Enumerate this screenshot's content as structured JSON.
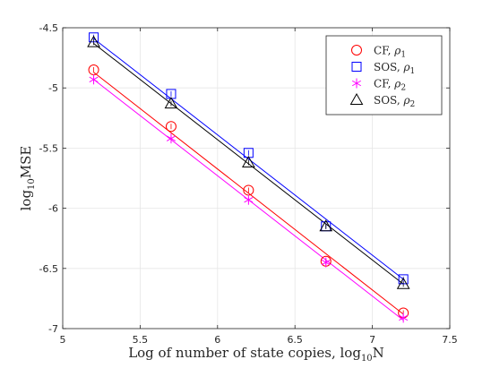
{
  "chart_data": {
    "type": "line",
    "xlabel": "Log of number of state copies, log",
    "xlabel_sub": "10",
    "xlabel_tail": "N",
    "ylabel": "log",
    "ylabel_sub": "10",
    "ylabel_tail": "MSE",
    "xlim": [
      5,
      7.5
    ],
    "ylim": [
      -7,
      -4.5
    ],
    "xticks": [
      "5",
      "5.5",
      "6",
      "6.5",
      "7",
      "7.5"
    ],
    "yticks": [
      "-4.5",
      "-5",
      "-5.5",
      "-6",
      "-6.5",
      "-7"
    ],
    "grid": true,
    "legend_position": "top-right",
    "series": [
      {
        "name": "CF, ρ1",
        "label_main": "CF, ",
        "label_sym": "ρ",
        "label_sub": "1",
        "color": "#ff0000",
        "marker": "circle",
        "x": [
          5.2,
          5.7,
          6.2,
          6.7,
          7.2
        ],
        "y": [
          -4.85,
          -5.32,
          -5.85,
          -6.44,
          -6.87
        ],
        "fit": [
          [
            5.2,
            -4.87
          ],
          [
            7.2,
            -6.88
          ]
        ]
      },
      {
        "name": "SOS, ρ1",
        "label_main": "SOS, ",
        "label_sym": "ρ",
        "label_sub": "1",
        "color": "#0000ff",
        "marker": "square",
        "x": [
          5.2,
          5.7,
          6.2,
          6.7,
          7.2
        ],
        "y": [
          -4.58,
          -5.05,
          -5.54,
          -6.15,
          -6.59
        ],
        "fit": [
          [
            5.2,
            -4.59
          ],
          [
            7.2,
            -6.59
          ]
        ]
      },
      {
        "name": "CF, ρ2",
        "label_main": "CF, ",
        "label_sym": "ρ",
        "label_sub": "2",
        "color": "#ff00ff",
        "marker": "asterisk",
        "x": [
          5.2,
          5.7,
          6.2,
          6.7,
          7.2
        ],
        "y": [
          -4.93,
          -5.42,
          -5.93,
          -6.45,
          -6.91
        ],
        "fit": [
          [
            5.2,
            -4.93
          ],
          [
            7.2,
            -6.93
          ]
        ]
      },
      {
        "name": "SOS, ρ2",
        "label_main": "SOS, ",
        "label_sym": "ρ",
        "label_sub": "2",
        "color": "#000000",
        "marker": "triangle",
        "x": [
          5.2,
          5.7,
          6.2,
          6.7,
          7.2
        ],
        "y": [
          -4.62,
          -5.13,
          -5.62,
          -6.15,
          -6.63
        ],
        "fit": [
          [
            5.2,
            -4.63
          ],
          [
            7.2,
            -6.63
          ]
        ]
      }
    ]
  }
}
